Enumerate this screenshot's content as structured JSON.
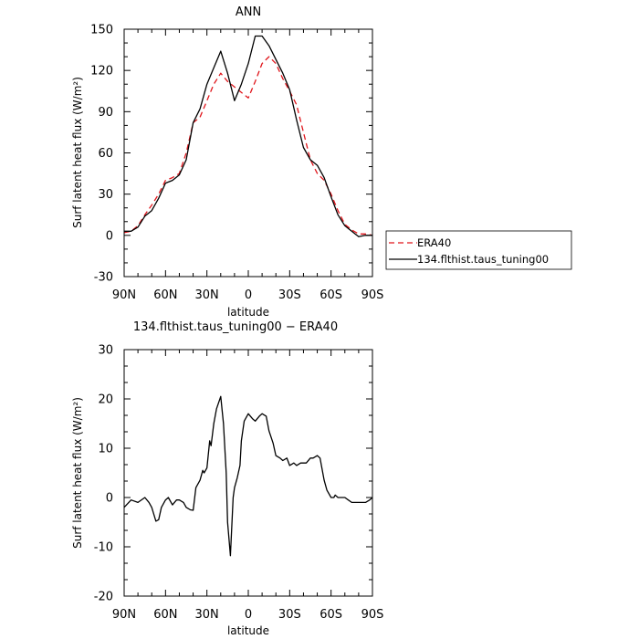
{
  "chart_data": [
    {
      "type": "line",
      "title": "ANN",
      "xlabel": "latitude",
      "ylabel": "Surf latent heat flux (W/m²)",
      "ylim": [
        -30,
        150
      ],
      "yticks": [
        -30,
        0,
        30,
        60,
        90,
        120,
        150
      ],
      "xlim": [
        90,
        -90
      ],
      "xticks": [
        90,
        60,
        30,
        0,
        -30,
        -60,
        -90
      ],
      "xticklabels": [
        "90N",
        "60N",
        "30N",
        "0",
        "30S",
        "60S",
        "90S"
      ],
      "legend_position": "right",
      "series": [
        {
          "name": "ERA40",
          "color": "#e0151b",
          "dash": "dashed",
          "x": [
            90,
            85,
            80,
            75,
            70,
            65,
            60,
            55,
            50,
            45,
            40,
            35,
            30,
            25,
            20,
            15,
            10,
            5,
            0,
            -5,
            -10,
            -15,
            -20,
            -25,
            -30,
            -35,
            -40,
            -45,
            -50,
            -55,
            -60,
            -65,
            -70,
            -75,
            -80,
            -85,
            -90
          ],
          "y": [
            2,
            3,
            7,
            15,
            22,
            30,
            40,
            42,
            45,
            60,
            82,
            86,
            98,
            110,
            118,
            112,
            108,
            104,
            100,
            112,
            125,
            130,
            125,
            114,
            105,
            95,
            75,
            55,
            45,
            40,
            30,
            18,
            8,
            4,
            1,
            1,
            0
          ]
        },
        {
          "name": "134.flthist.taus_tuning00",
          "color": "#000000",
          "dash": "solid",
          "x": [
            90,
            85,
            80,
            75,
            70,
            65,
            60,
            55,
            50,
            45,
            40,
            35,
            30,
            25,
            20,
            15,
            10,
            5,
            0,
            -5,
            -10,
            -15,
            -20,
            -25,
            -30,
            -35,
            -40,
            -45,
            -50,
            -55,
            -60,
            -65,
            -70,
            -75,
            -80,
            -85,
            -90
          ],
          "y": [
            3,
            3,
            6,
            14,
            18,
            27,
            38,
            40,
            44,
            55,
            82,
            92,
            110,
            122,
            134,
            118,
            98,
            110,
            125,
            145,
            145,
            138,
            128,
            118,
            106,
            84,
            64,
            55,
            51,
            42,
            28,
            15,
            7,
            3,
            -1,
            0,
            0
          ]
        }
      ]
    },
    {
      "type": "line",
      "title": "134.flthist.taus_tuning00 − ERA40",
      "xlabel": "latitude",
      "ylabel": "Surf latent heat flux (W/m²)",
      "ylim": [
        -20,
        30
      ],
      "yticks": [
        -20,
        -10,
        0,
        10,
        20,
        30
      ],
      "xlim": [
        90,
        -90
      ],
      "xticks": [
        90,
        60,
        30,
        0,
        -30,
        -60,
        -90
      ],
      "xticklabels": [
        "90N",
        "60N",
        "30N",
        "0",
        "30S",
        "60S",
        "90S"
      ],
      "series": [
        {
          "color": "#000000",
          "dash": "solid",
          "x": [
            90,
            85,
            80,
            75,
            72,
            70,
            67,
            65,
            63,
            60,
            58,
            55,
            52,
            50,
            47,
            45,
            42,
            40,
            38,
            35,
            33,
            32,
            30,
            28,
            27,
            25,
            23,
            20,
            18,
            16,
            15,
            13,
            11,
            10,
            8,
            6,
            5,
            3,
            0,
            -3,
            -5,
            -8,
            -10,
            -13,
            -15,
            -18,
            -20,
            -23,
            -25,
            -28,
            -30,
            -33,
            -35,
            -38,
            -40,
            -42,
            -45,
            -47,
            -50,
            -52,
            -55,
            -57,
            -60,
            -62,
            -63,
            -65,
            -67,
            -70,
            -75,
            -80,
            -85,
            -88,
            -90
          ],
          "y": [
            -2,
            -0.5,
            -1,
            0,
            -1,
            -2,
            -4.8,
            -4.5,
            -2,
            -0.5,
            0,
            -1.5,
            -0.5,
            -0.5,
            -1,
            -2,
            -2.5,
            -2.6,
            2,
            3.5,
            5.5,
            5,
            6,
            11.5,
            10.5,
            15,
            18,
            20.5,
            15,
            5,
            -5,
            -11.8,
            0,
            2,
            4,
            6.5,
            11.5,
            15.5,
            17,
            16,
            15.5,
            16.5,
            17,
            16.5,
            13.5,
            11,
            8.5,
            8,
            7.5,
            8,
            6.5,
            7,
            6.5,
            7,
            7,
            7,
            8,
            8,
            8.5,
            8,
            3.5,
            1.5,
            0,
            0,
            0.5,
            0,
            0,
            0,
            -1,
            -1,
            -1,
            -0.5,
            0
          ]
        }
      ]
    }
  ]
}
